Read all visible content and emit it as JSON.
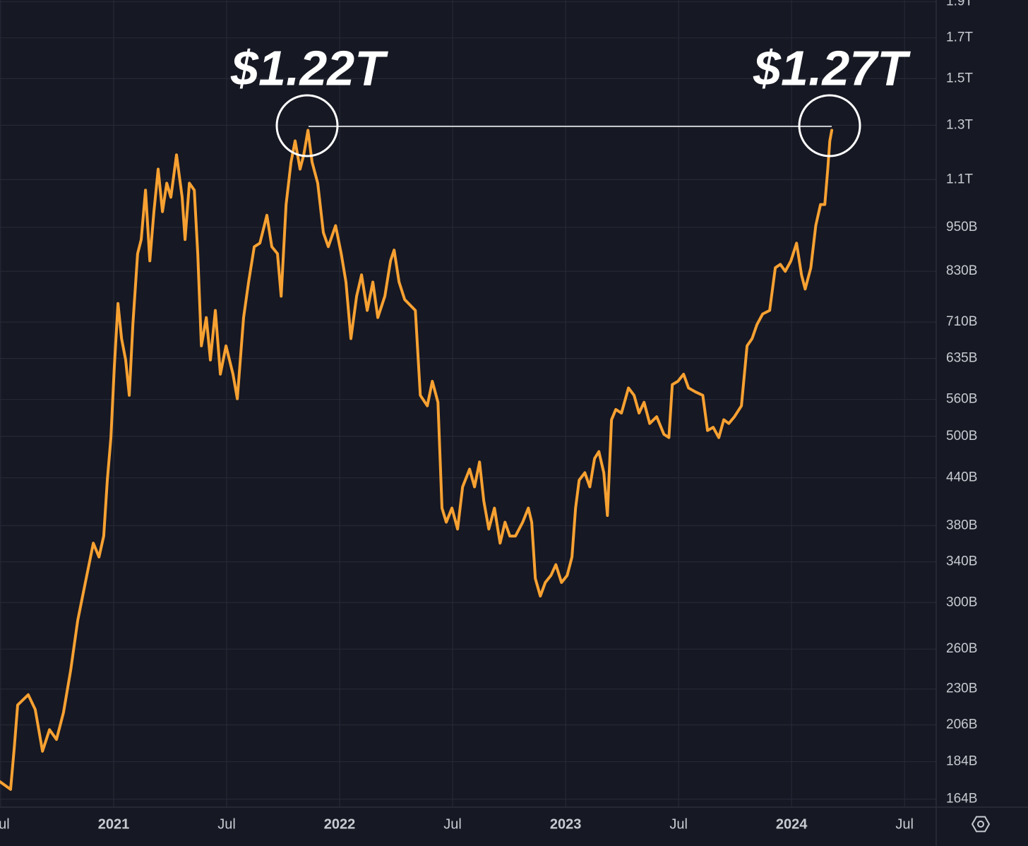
{
  "chart_data": {
    "type": "line",
    "color": "#f7a132",
    "log_scale": true,
    "grid": true,
    "annotations": [
      "$1.22T",
      "$1.27T"
    ],
    "xlim": [
      2020.497,
      2024.64
    ],
    "xticks": [
      {
        "value": 2020.5,
        "label": "Jul"
      },
      2021,
      {
        "value": 2021.5,
        "label": "Jul"
      },
      2022,
      {
        "value": 2022.5,
        "label": "Jul"
      },
      2023,
      {
        "value": 2023.5,
        "label": "Jul"
      },
      2024,
      {
        "value": 2024.5,
        "label": "Jul"
      }
    ],
    "ylim": [
      160,
      1910
    ],
    "yticks": [
      {
        "value": 164,
        "label": "164B"
      },
      {
        "value": 184,
        "label": "184B"
      },
      {
        "value": 206,
        "label": "206B"
      },
      {
        "value": 230,
        "label": "230B"
      },
      {
        "value": 260,
        "label": "260B"
      },
      {
        "value": 300,
        "label": "300B"
      },
      {
        "value": 340,
        "label": "340B"
      },
      {
        "value": 380,
        "label": "380B"
      },
      {
        "value": 440,
        "label": "440B"
      },
      {
        "value": 500,
        "label": "500B"
      },
      {
        "value": 560,
        "label": "560B"
      },
      {
        "value": 635,
        "label": "635B"
      },
      {
        "value": 710,
        "label": "710B"
      },
      {
        "value": 830,
        "label": "830B"
      },
      {
        "value": 950,
        "label": "950B"
      },
      {
        "value": 1100,
        "label": "1.1T"
      },
      {
        "value": 1300,
        "label": "1.3T"
      },
      {
        "value": 1500,
        "label": "1.5T"
      },
      {
        "value": 1700,
        "label": "1.7T"
      },
      {
        "value": 1900,
        "label": "1.9T"
      }
    ],
    "x": [
      2020.497,
      2020.544,
      2020.56,
      2020.575,
      2020.622,
      2020.653,
      2020.685,
      2020.716,
      2020.747,
      2020.778,
      2020.81,
      2020.841,
      2020.872,
      2020.91,
      2020.935,
      2020.956,
      2020.972,
      2020.988,
      2021.003,
      2021.019,
      2021.035,
      2021.053,
      2021.069,
      2021.085,
      2021.106,
      2021.122,
      2021.141,
      2021.16,
      2021.178,
      2021.197,
      2021.216,
      2021.235,
      2021.253,
      2021.278,
      2021.303,
      2021.316,
      2021.335,
      2021.357,
      2021.372,
      2021.388,
      2021.41,
      2021.428,
      2021.45,
      2021.472,
      2021.497,
      2021.528,
      2021.547,
      2021.575,
      2021.597,
      2021.622,
      2021.647,
      2021.678,
      2021.7,
      2021.725,
      2021.741,
      2021.763,
      2021.785,
      2021.803,
      2021.825,
      2021.841,
      2021.86,
      2021.878,
      2021.903,
      2021.928,
      2021.95,
      2021.982,
      2022.007,
      2022.028,
      2022.05,
      2022.075,
      2022.097,
      2022.122,
      2022.147,
      2022.169,
      2022.2,
      2022.225,
      2022.241,
      2022.263,
      2022.288,
      2022.335,
      2022.357,
      2022.388,
      2022.41,
      2022.435,
      2022.453,
      2022.472,
      2022.497,
      2022.522,
      2022.544,
      2022.575,
      2022.597,
      2022.619,
      2022.638,
      2022.66,
      2022.685,
      2022.71,
      2022.732,
      2022.753,
      2022.778,
      2022.81,
      2022.835,
      2022.85,
      2022.866,
      2022.888,
      2022.91,
      2022.935,
      2022.957,
      2022.982,
      2023.007,
      2023.028,
      2023.044,
      2023.06,
      2023.085,
      2023.107,
      2023.128,
      2023.147,
      2023.169,
      2023.185,
      2023.203,
      2023.222,
      2023.247,
      2023.278,
      2023.303,
      2023.325,
      2023.347,
      2023.372,
      2023.403,
      2023.435,
      2023.457,
      2023.472,
      2023.497,
      2023.522,
      2023.544,
      2023.575,
      2023.607,
      2023.628,
      2023.653,
      2023.678,
      2023.7,
      2023.722,
      2023.747,
      2023.778,
      2023.803,
      2023.825,
      2023.847,
      2023.872,
      2023.903,
      2023.928,
      2023.95,
      2023.972,
      2023.997,
      2024.022,
      2024.044,
      2024.06,
      2024.085,
      2024.107,
      2024.128,
      2024.147,
      2024.16,
      2024.169,
      2024.178
    ],
    "values": [
      173,
      169,
      192,
      219,
      226,
      216,
      190,
      203,
      197,
      214,
      244,
      284,
      316,
      360,
      345,
      368,
      437,
      498,
      618,
      752,
      675,
      632,
      567,
      705,
      876,
      915,
      1065,
      857,
      997,
      1136,
      997,
      1088,
      1042,
      1187,
      1042,
      915,
      1088,
      1065,
      876,
      660,
      720,
      632,
      736,
      605,
      660,
      605,
      561,
      720,
      803,
      895,
      905,
      986,
      895,
      876,
      769,
      1019,
      1161,
      1239,
      1136,
      1187,
      1280,
      1161,
      1088,
      935,
      895,
      955,
      876,
      803,
      675,
      769,
      821,
      736,
      803,
      720,
      769,
      857,
      886,
      803,
      761,
      736,
      567,
      549,
      592,
      555,
      401,
      384,
      401,
      376,
      428,
      452,
      428,
      462,
      410,
      376,
      401,
      360,
      384,
      368,
      368,
      384,
      401,
      384,
      323,
      306,
      319,
      326,
      337,
      319,
      326,
      345,
      401,
      437,
      447,
      428,
      467,
      477,
      447,
      392,
      526,
      543,
      537,
      580,
      567,
      537,
      555,
      520,
      531,
      503,
      498,
      586,
      592,
      605,
      580,
      573,
      567,
      509,
      514,
      498,
      526,
      520,
      531,
      549,
      660,
      675,
      705,
      728,
      736,
      839,
      848,
      830,
      857,
      905,
      821,
      786,
      839,
      955,
      1019,
      1019,
      1136,
      1239,
      1280
    ]
  }
}
